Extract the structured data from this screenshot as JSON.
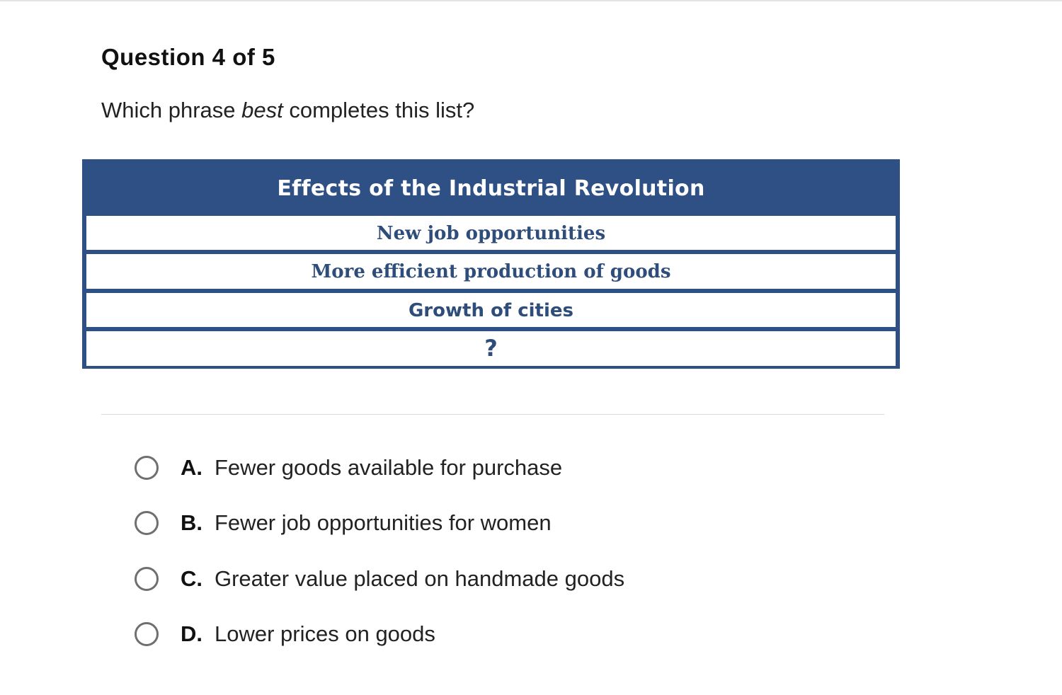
{
  "question": {
    "header": "Question 4 of 5",
    "prompt_before": "Which phrase ",
    "prompt_emphasis": "best",
    "prompt_after": " completes this list?"
  },
  "table": {
    "title": "Effects of the Industrial Revolution",
    "rows": [
      "New job opportunities",
      "More efficient production of goods",
      "Growth of cities",
      "?"
    ],
    "header_color": "#2e5085",
    "row_text_color": "#2e4d7a"
  },
  "answers": [
    {
      "letter": "A.",
      "text": "Fewer goods available for purchase",
      "selected": false
    },
    {
      "letter": "B.",
      "text": "Fewer job opportunities for women",
      "selected": false
    },
    {
      "letter": "C.",
      "text": "Greater value placed on handmade goods",
      "selected": false
    },
    {
      "letter": "D.",
      "text": "Lower prices on goods",
      "selected": false
    }
  ]
}
